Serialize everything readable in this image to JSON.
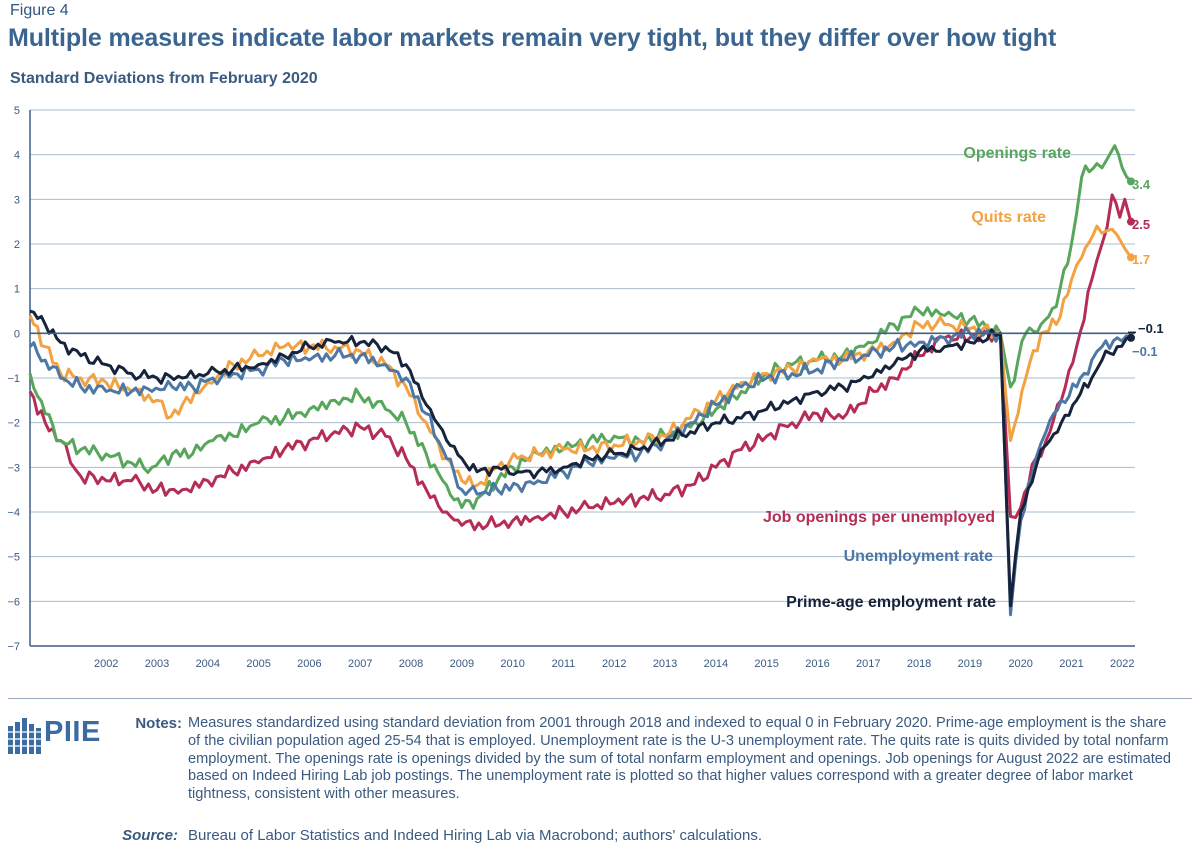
{
  "figure_label": "Figure 4",
  "title": "Multiple measures indicate labor markets remain very tight, but they differ over how tight",
  "subtitle": "Standard Deviations from February 2020",
  "colors": {
    "openings": "#58a65c",
    "quits": "#f2a242",
    "jobs_per_unemployed": "#b52d55",
    "unemployment": "#4d78a6",
    "prime_age": "#16233a",
    "grid": "#a9bccd",
    "zero_line": "#3d5f8a",
    "axis_text": "#3a5a82"
  },
  "chart_data": {
    "type": "line",
    "ylabel": "Standard Deviations from February 2020",
    "ylim": [
      -7,
      5
    ],
    "yticks": [
      "5",
      "4",
      "3",
      "2",
      "1",
      "0",
      "−1",
      "−2",
      "−3",
      "−4",
      "−5",
      "−6",
      "−7"
    ],
    "yvalues": [
      5,
      4,
      3,
      2,
      1,
      0,
      -1,
      -2,
      -3,
      -4,
      -5,
      -6,
      -7
    ],
    "xlim": [
      2001,
      2022.75
    ],
    "xticks": [
      "2002",
      "2003",
      "2004",
      "2005",
      "2006",
      "2007",
      "2008",
      "2009",
      "2010",
      "2011",
      "2012",
      "2013",
      "2014",
      "2015",
      "2016",
      "2017",
      "2018",
      "2019",
      "2020",
      "2021",
      "2022"
    ],
    "series": [
      {
        "key": "jobs_per_unemployed",
        "name": "Job openings per unemployed",
        "end_label": "2.5",
        "end": [
          2022.67,
          2.5
        ],
        "points": [
          [
            2001.0,
            -1.3
          ],
          [
            2001.3,
            -2.0
          ],
          [
            2001.6,
            -2.4
          ],
          [
            2001.8,
            -2.9
          ],
          [
            2002.0,
            -3.2
          ],
          [
            2002.5,
            -3.3
          ],
          [
            2003.0,
            -3.3
          ],
          [
            2003.5,
            -3.5
          ],
          [
            2004.0,
            -3.5
          ],
          [
            2004.5,
            -3.3
          ],
          [
            2005.0,
            -3.1
          ],
          [
            2005.5,
            -2.9
          ],
          [
            2006.0,
            -2.6
          ],
          [
            2006.5,
            -2.4
          ],
          [
            2007.0,
            -2.2
          ],
          [
            2007.5,
            -2.1
          ],
          [
            2008.0,
            -2.3
          ],
          [
            2008.4,
            -2.8
          ],
          [
            2008.8,
            -3.5
          ],
          [
            2009.2,
            -4.0
          ],
          [
            2009.5,
            -4.3
          ],
          [
            2010.0,
            -4.3
          ],
          [
            2010.5,
            -4.2
          ],
          [
            2011.0,
            -4.1
          ],
          [
            2011.5,
            -4.0
          ],
          [
            2012.0,
            -3.9
          ],
          [
            2012.5,
            -3.8
          ],
          [
            2013.0,
            -3.7
          ],
          [
            2013.5,
            -3.6
          ],
          [
            2014.0,
            -3.4
          ],
          [
            2014.5,
            -3.0
          ],
          [
            2015.0,
            -2.6
          ],
          [
            2015.5,
            -2.3
          ],
          [
            2016.0,
            -2.0
          ],
          [
            2016.5,
            -1.8
          ],
          [
            2017.0,
            -1.9
          ],
          [
            2017.3,
            -1.6
          ],
          [
            2017.6,
            -1.3
          ],
          [
            2018.0,
            -1.0
          ],
          [
            2018.5,
            -0.5
          ],
          [
            2019.0,
            -0.1
          ],
          [
            2019.5,
            -0.1
          ],
          [
            2020.1,
            0.0
          ],
          [
            2020.3,
            -4.1
          ],
          [
            2020.5,
            -3.9
          ],
          [
            2020.8,
            -2.8
          ],
          [
            2021.0,
            -2.4
          ],
          [
            2021.3,
            -1.5
          ],
          [
            2021.6,
            -0.3
          ],
          [
            2021.9,
            1.2
          ],
          [
            2022.1,
            2.0
          ],
          [
            2022.3,
            3.1
          ],
          [
            2022.45,
            2.6
          ],
          [
            2022.55,
            3.0
          ],
          [
            2022.67,
            2.5
          ]
        ]
      },
      {
        "key": "openings",
        "name": "Openings rate",
        "end_label": "3.4",
        "end": [
          2022.67,
          3.4
        ],
        "points": [
          [
            2001.0,
            -0.9
          ],
          [
            2001.3,
            -1.8
          ],
          [
            2001.6,
            -2.4
          ],
          [
            2002.0,
            -2.6
          ],
          [
            2002.5,
            -2.7
          ],
          [
            2003.0,
            -2.9
          ],
          [
            2003.4,
            -3.0
          ],
          [
            2003.8,
            -2.7
          ],
          [
            2004.2,
            -2.7
          ],
          [
            2004.6,
            -2.4
          ],
          [
            2005.0,
            -2.3
          ],
          [
            2005.5,
            -2.0
          ],
          [
            2006.0,
            -1.9
          ],
          [
            2006.5,
            -1.7
          ],
          [
            2007.0,
            -1.5
          ],
          [
            2007.5,
            -1.4
          ],
          [
            2008.0,
            -1.7
          ],
          [
            2008.4,
            -2.0
          ],
          [
            2008.8,
            -2.7
          ],
          [
            2009.2,
            -3.4
          ],
          [
            2009.5,
            -3.9
          ],
          [
            2009.8,
            -3.7
          ],
          [
            2010.2,
            -3.3
          ],
          [
            2010.5,
            -3.0
          ],
          [
            2011.0,
            -2.7
          ],
          [
            2011.5,
            -2.6
          ],
          [
            2012.0,
            -2.4
          ],
          [
            2012.5,
            -2.3
          ],
          [
            2013.0,
            -2.4
          ],
          [
            2013.5,
            -2.3
          ],
          [
            2014.0,
            -2.1
          ],
          [
            2014.5,
            -1.7
          ],
          [
            2015.0,
            -1.3
          ],
          [
            2015.5,
            -0.9
          ],
          [
            2016.0,
            -0.7
          ],
          [
            2016.5,
            -0.6
          ],
          [
            2017.0,
            -0.5
          ],
          [
            2017.5,
            -0.2
          ],
          [
            2018.0,
            0.2
          ],
          [
            2018.5,
            0.5
          ],
          [
            2019.0,
            0.4
          ],
          [
            2019.5,
            0.3
          ],
          [
            2020.1,
            0.0
          ],
          [
            2020.3,
            -1.2
          ],
          [
            2020.6,
            0.0
          ],
          [
            2020.9,
            0.2
          ],
          [
            2021.2,
            0.6
          ],
          [
            2021.5,
            2.0
          ],
          [
            2021.7,
            3.5
          ],
          [
            2022.0,
            3.8
          ],
          [
            2022.2,
            3.9
          ],
          [
            2022.35,
            4.2
          ],
          [
            2022.5,
            3.7
          ],
          [
            2022.67,
            3.4
          ]
        ]
      },
      {
        "key": "quits",
        "name": "Quits rate",
        "end_label": "1.7",
        "end": [
          2022.67,
          1.7
        ],
        "points": [
          [
            2001.0,
            0.4
          ],
          [
            2001.3,
            -0.3
          ],
          [
            2001.6,
            -0.9
          ],
          [
            2002.0,
            -1.0
          ],
          [
            2002.5,
            -1.1
          ],
          [
            2003.0,
            -1.3
          ],
          [
            2003.5,
            -1.5
          ],
          [
            2003.7,
            -1.9
          ],
          [
            2004.0,
            -1.6
          ],
          [
            2004.5,
            -1.1
          ],
          [
            2005.0,
            -0.7
          ],
          [
            2005.5,
            -0.5
          ],
          [
            2006.0,
            -0.3
          ],
          [
            2006.5,
            -0.3
          ],
          [
            2007.0,
            -0.3
          ],
          [
            2007.5,
            -0.4
          ],
          [
            2008.0,
            -0.7
          ],
          [
            2008.4,
            -1.2
          ],
          [
            2008.8,
            -2.0
          ],
          [
            2009.2,
            -2.8
          ],
          [
            2009.5,
            -3.3
          ],
          [
            2009.8,
            -3.4
          ],
          [
            2010.2,
            -3.0
          ],
          [
            2010.6,
            -2.8
          ],
          [
            2011.0,
            -2.7
          ],
          [
            2011.5,
            -2.6
          ],
          [
            2012.0,
            -2.6
          ],
          [
            2012.5,
            -2.5
          ],
          [
            2013.0,
            -2.4
          ],
          [
            2013.5,
            -2.3
          ],
          [
            2014.0,
            -1.9
          ],
          [
            2014.5,
            -1.5
          ],
          [
            2015.0,
            -1.1
          ],
          [
            2015.5,
            -0.9
          ],
          [
            2016.0,
            -0.8
          ],
          [
            2016.5,
            -0.6
          ],
          [
            2017.0,
            -0.6
          ],
          [
            2017.5,
            -0.4
          ],
          [
            2018.0,
            -0.2
          ],
          [
            2018.5,
            0.2
          ],
          [
            2019.0,
            0.2
          ],
          [
            2019.5,
            0.1
          ],
          [
            2020.1,
            0.0
          ],
          [
            2020.3,
            -2.4
          ],
          [
            2020.6,
            -1.0
          ],
          [
            2020.9,
            0.0
          ],
          [
            2021.2,
            0.2
          ],
          [
            2021.5,
            1.2
          ],
          [
            2021.7,
            1.7
          ],
          [
            2022.0,
            2.4
          ],
          [
            2022.2,
            2.3
          ],
          [
            2022.4,
            2.2
          ],
          [
            2022.55,
            1.9
          ],
          [
            2022.67,
            1.7
          ]
        ]
      },
      {
        "key": "unemployment",
        "name": "Unemployment rate",
        "end_label": "−0.1",
        "end": [
          2022.67,
          -0.1
        ],
        "points": [
          [
            2001.0,
            -0.3
          ],
          [
            2001.3,
            -0.6
          ],
          [
            2001.6,
            -1.0
          ],
          [
            2002.0,
            -1.2
          ],
          [
            2002.5,
            -1.3
          ],
          [
            2003.0,
            -1.3
          ],
          [
            2003.4,
            -1.3
          ],
          [
            2003.8,
            -1.2
          ],
          [
            2004.2,
            -1.2
          ],
          [
            2004.6,
            -1.0
          ],
          [
            2005.0,
            -0.9
          ],
          [
            2005.5,
            -0.8
          ],
          [
            2006.0,
            -0.6
          ],
          [
            2006.5,
            -0.6
          ],
          [
            2007.0,
            -0.5
          ],
          [
            2007.5,
            -0.5
          ],
          [
            2008.0,
            -0.7
          ],
          [
            2008.4,
            -1.0
          ],
          [
            2008.8,
            -1.8
          ],
          [
            2009.2,
            -2.8
          ],
          [
            2009.5,
            -3.5
          ],
          [
            2009.8,
            -3.6
          ],
          [
            2010.2,
            -3.5
          ],
          [
            2010.6,
            -3.4
          ],
          [
            2011.0,
            -3.3
          ],
          [
            2011.5,
            -3.1
          ],
          [
            2012.0,
            -2.9
          ],
          [
            2012.5,
            -2.8
          ],
          [
            2013.0,
            -2.7
          ],
          [
            2013.5,
            -2.4
          ],
          [
            2014.0,
            -2.0
          ],
          [
            2014.5,
            -1.6
          ],
          [
            2015.0,
            -1.2
          ],
          [
            2015.5,
            -1.0
          ],
          [
            2016.0,
            -0.9
          ],
          [
            2016.5,
            -0.8
          ],
          [
            2017.0,
            -0.6
          ],
          [
            2017.5,
            -0.5
          ],
          [
            2018.0,
            -0.3
          ],
          [
            2018.5,
            -0.2
          ],
          [
            2019.0,
            -0.1
          ],
          [
            2019.5,
            0.0
          ],
          [
            2020.1,
            0.0
          ],
          [
            2020.3,
            -6.3
          ],
          [
            2020.5,
            -4.2
          ],
          [
            2020.8,
            -2.8
          ],
          [
            2021.0,
            -2.2
          ],
          [
            2021.3,
            -1.5
          ],
          [
            2021.6,
            -1.2
          ],
          [
            2021.9,
            -0.6
          ],
          [
            2022.1,
            -0.3
          ],
          [
            2022.4,
            -0.1
          ],
          [
            2022.67,
            -0.1
          ]
        ]
      },
      {
        "key": "prime_age",
        "name": "Prime-age employment rate",
        "end_label": "−0.1",
        "end": [
          2022.67,
          -0.1
        ],
        "points": [
          [
            2001.0,
            0.5
          ],
          [
            2001.3,
            0.2
          ],
          [
            2001.6,
            -0.2
          ],
          [
            2002.0,
            -0.5
          ],
          [
            2002.5,
            -0.7
          ],
          [
            2003.0,
            -0.9
          ],
          [
            2003.5,
            -1.0
          ],
          [
            2004.0,
            -1.0
          ],
          [
            2004.5,
            -0.9
          ],
          [
            2005.0,
            -0.8
          ],
          [
            2005.5,
            -0.7
          ],
          [
            2006.0,
            -0.5
          ],
          [
            2006.5,
            -0.3
          ],
          [
            2007.0,
            -0.2
          ],
          [
            2007.5,
            -0.2
          ],
          [
            2008.0,
            -0.3
          ],
          [
            2008.4,
            -0.7
          ],
          [
            2008.8,
            -1.6
          ],
          [
            2009.2,
            -2.4
          ],
          [
            2009.5,
            -2.8
          ],
          [
            2009.8,
            -3.1
          ],
          [
            2010.2,
            -3.0
          ],
          [
            2010.6,
            -3.1
          ],
          [
            2011.0,
            -3.1
          ],
          [
            2011.5,
            -3.0
          ],
          [
            2012.0,
            -2.8
          ],
          [
            2012.5,
            -2.7
          ],
          [
            2013.0,
            -2.6
          ],
          [
            2013.5,
            -2.4
          ],
          [
            2014.0,
            -2.2
          ],
          [
            2014.5,
            -2.0
          ],
          [
            2015.0,
            -1.9
          ],
          [
            2015.5,
            -1.7
          ],
          [
            2016.0,
            -1.5
          ],
          [
            2016.5,
            -1.3
          ],
          [
            2017.0,
            -1.2
          ],
          [
            2017.5,
            -1.0
          ],
          [
            2018.0,
            -0.7
          ],
          [
            2018.5,
            -0.4
          ],
          [
            2019.0,
            -0.3
          ],
          [
            2019.5,
            -0.2
          ],
          [
            2020.1,
            0.0
          ],
          [
            2020.3,
            -6.1
          ],
          [
            2020.5,
            -4.0
          ],
          [
            2020.8,
            -3.0
          ],
          [
            2021.0,
            -2.5
          ],
          [
            2021.3,
            -2.0
          ],
          [
            2021.6,
            -1.5
          ],
          [
            2021.9,
            -1.0
          ],
          [
            2022.1,
            -0.6
          ],
          [
            2022.4,
            -0.3
          ],
          [
            2022.67,
            -0.1
          ]
        ]
      }
    ],
    "annotations": {
      "openings": "Openings rate",
      "quits": "Quits rate",
      "jobs_per_unemployed": "Job openings per unemployed",
      "unemployment": "Unemployment rate",
      "prime_age": "Prime-age employment rate"
    }
  },
  "footer": {
    "logo_text": "PIIE",
    "notes_label": "Notes:",
    "notes_text": "Measures standardized using standard deviation from 2001 through 2018 and indexed to equal 0 in February 2020. Prime-age employment is the share of the civilian population aged 25-54 that is employed. Unemployment rate is the U-3 unemployment rate. The quits rate is quits divided by total nonfarm employment. The openings rate is openings divided by the sum of total nonfarm employment and openings. Job openings for August 2022 are estimated based on Indeed Hiring Lab job postings. The unemployment rate is plotted so that higher values correspond with a greater degree of labor market tightness, consistent with other measures.",
    "source_label": "Source:",
    "source_text": "Bureau of Labor Statistics and Indeed Hiring Lab via Macrobond; authors' calculations."
  }
}
